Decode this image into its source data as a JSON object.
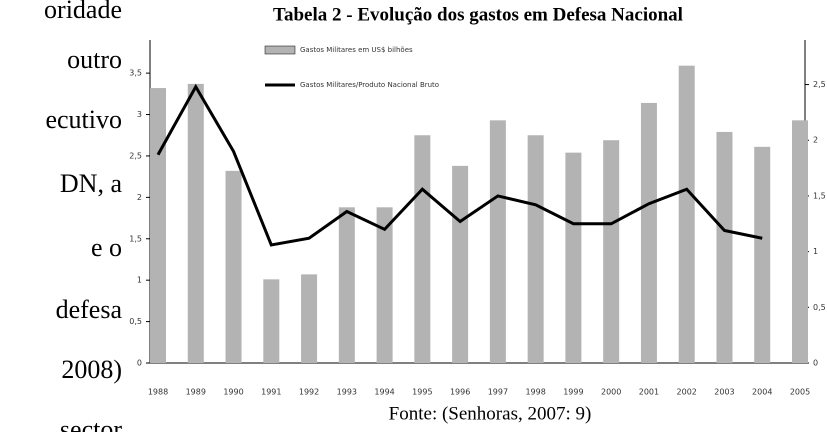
{
  "document": {
    "left_lines": [
      "oridade",
      "outro",
      "ecutivo",
      "DN,    a",
      "e    o",
      "defesa",
      "2008)",
      "sector"
    ]
  },
  "chart_data": {
    "type": "bar_line",
    "title": "Tabela 2 - Evolução dos gastos em Defesa Nacional",
    "source": "Fonte: (Senhoras, 2007: 9)",
    "categories": [
      "1988",
      "1989",
      "1990",
      "1991",
      "1992",
      "1993",
      "1994",
      "1995",
      "1996",
      "1997",
      "1998",
      "1999",
      "2000",
      "2001",
      "2002",
      "2003",
      "2004",
      "2005"
    ],
    "series": [
      {
        "name": "Gastos Militares em US$ bilhões",
        "type": "bar",
        "color": "#b3b3b3",
        "values": [
          3.32,
          3.37,
          2.32,
          1.01,
          1.07,
          1.88,
          1.88,
          2.75,
          2.38,
          2.93,
          2.75,
          2.54,
          2.69,
          3.14,
          3.59,
          2.79,
          2.61,
          2.93
        ]
      },
      {
        "name": "Gastos Militares/Produto Nacional Bruto",
        "type": "line",
        "axis": "y2",
        "color": "#000000",
        "values": [
          1.87,
          2.48,
          1.9,
          1.06,
          1.12,
          1.36,
          1.2,
          1.56,
          1.27,
          1.5,
          1.42,
          1.25,
          1.25,
          1.43,
          1.56,
          1.19,
          1.12,
          null
        ]
      }
    ],
    "ylim": [
      0,
      3.9
    ],
    "yticks": [
      0,
      {
        "value": 0.5,
        "label": "0,5"
      },
      1,
      {
        "value": 1.5,
        "label": "1,5"
      },
      2,
      {
        "value": 2.5,
        "label": "2,5"
      },
      3,
      {
        "value": 3.5,
        "label": "3,5"
      }
    ],
    "y2lim": [
      0,
      2.9
    ],
    "y2ticks": [
      0,
      {
        "value": 0.5,
        "label": "0,5"
      },
      1,
      {
        "value": 1.5,
        "label": "1,5"
      },
      2,
      {
        "value": 2.5,
        "label": "2,5"
      }
    ]
  }
}
